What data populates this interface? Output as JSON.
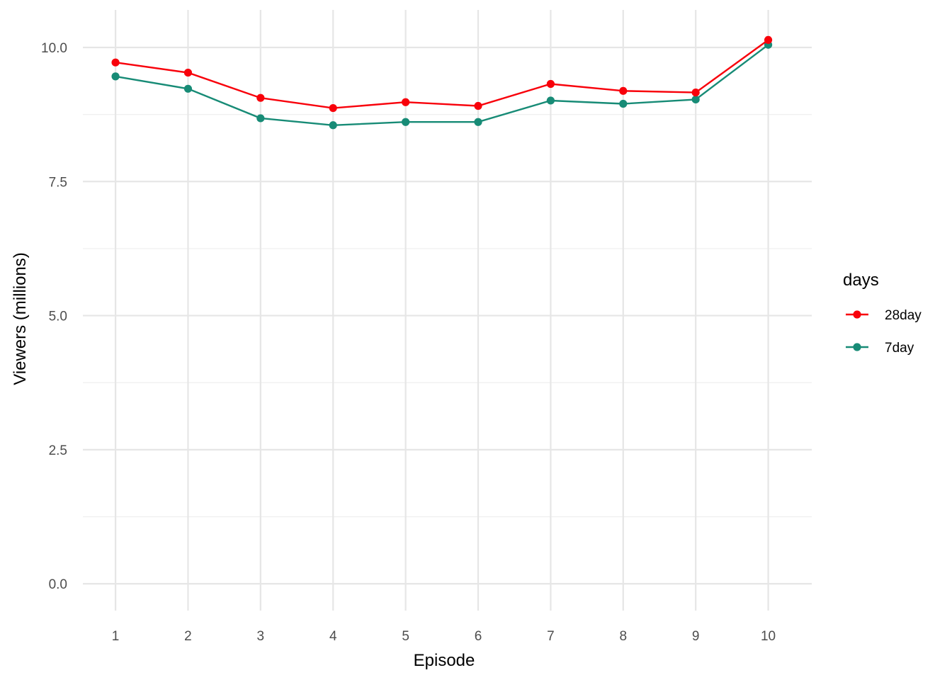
{
  "chart_data": {
    "type": "line",
    "title": "",
    "xlabel": "Episode",
    "ylabel": "Viewers (millions)",
    "x": [
      1,
      2,
      3,
      4,
      5,
      6,
      7,
      8,
      9,
      10
    ],
    "x_ticks": [
      "1",
      "2",
      "3",
      "4",
      "5",
      "6",
      "7",
      "8",
      "9",
      "10"
    ],
    "y_ticks": [
      "0.0",
      "2.5",
      "5.0",
      "7.5",
      "10.0"
    ],
    "y_tick_values": [
      0,
      2.5,
      5,
      7.5,
      10
    ],
    "xlim": [
      0.55,
      10.6
    ],
    "ylim": [
      -0.5,
      10.7
    ],
    "grid": true,
    "legend": {
      "title": "days",
      "position": "right"
    },
    "series": [
      {
        "name": "28day",
        "color": "#f8000a",
        "values": [
          9.72,
          9.53,
          9.06,
          8.87,
          8.98,
          8.91,
          9.32,
          9.19,
          9.16,
          10.14
        ]
      },
      {
        "name": "7day",
        "color": "#178b76",
        "values": [
          9.46,
          9.23,
          8.68,
          8.55,
          8.61,
          8.61,
          9.01,
          8.95,
          9.03,
          10.05
        ]
      }
    ]
  }
}
